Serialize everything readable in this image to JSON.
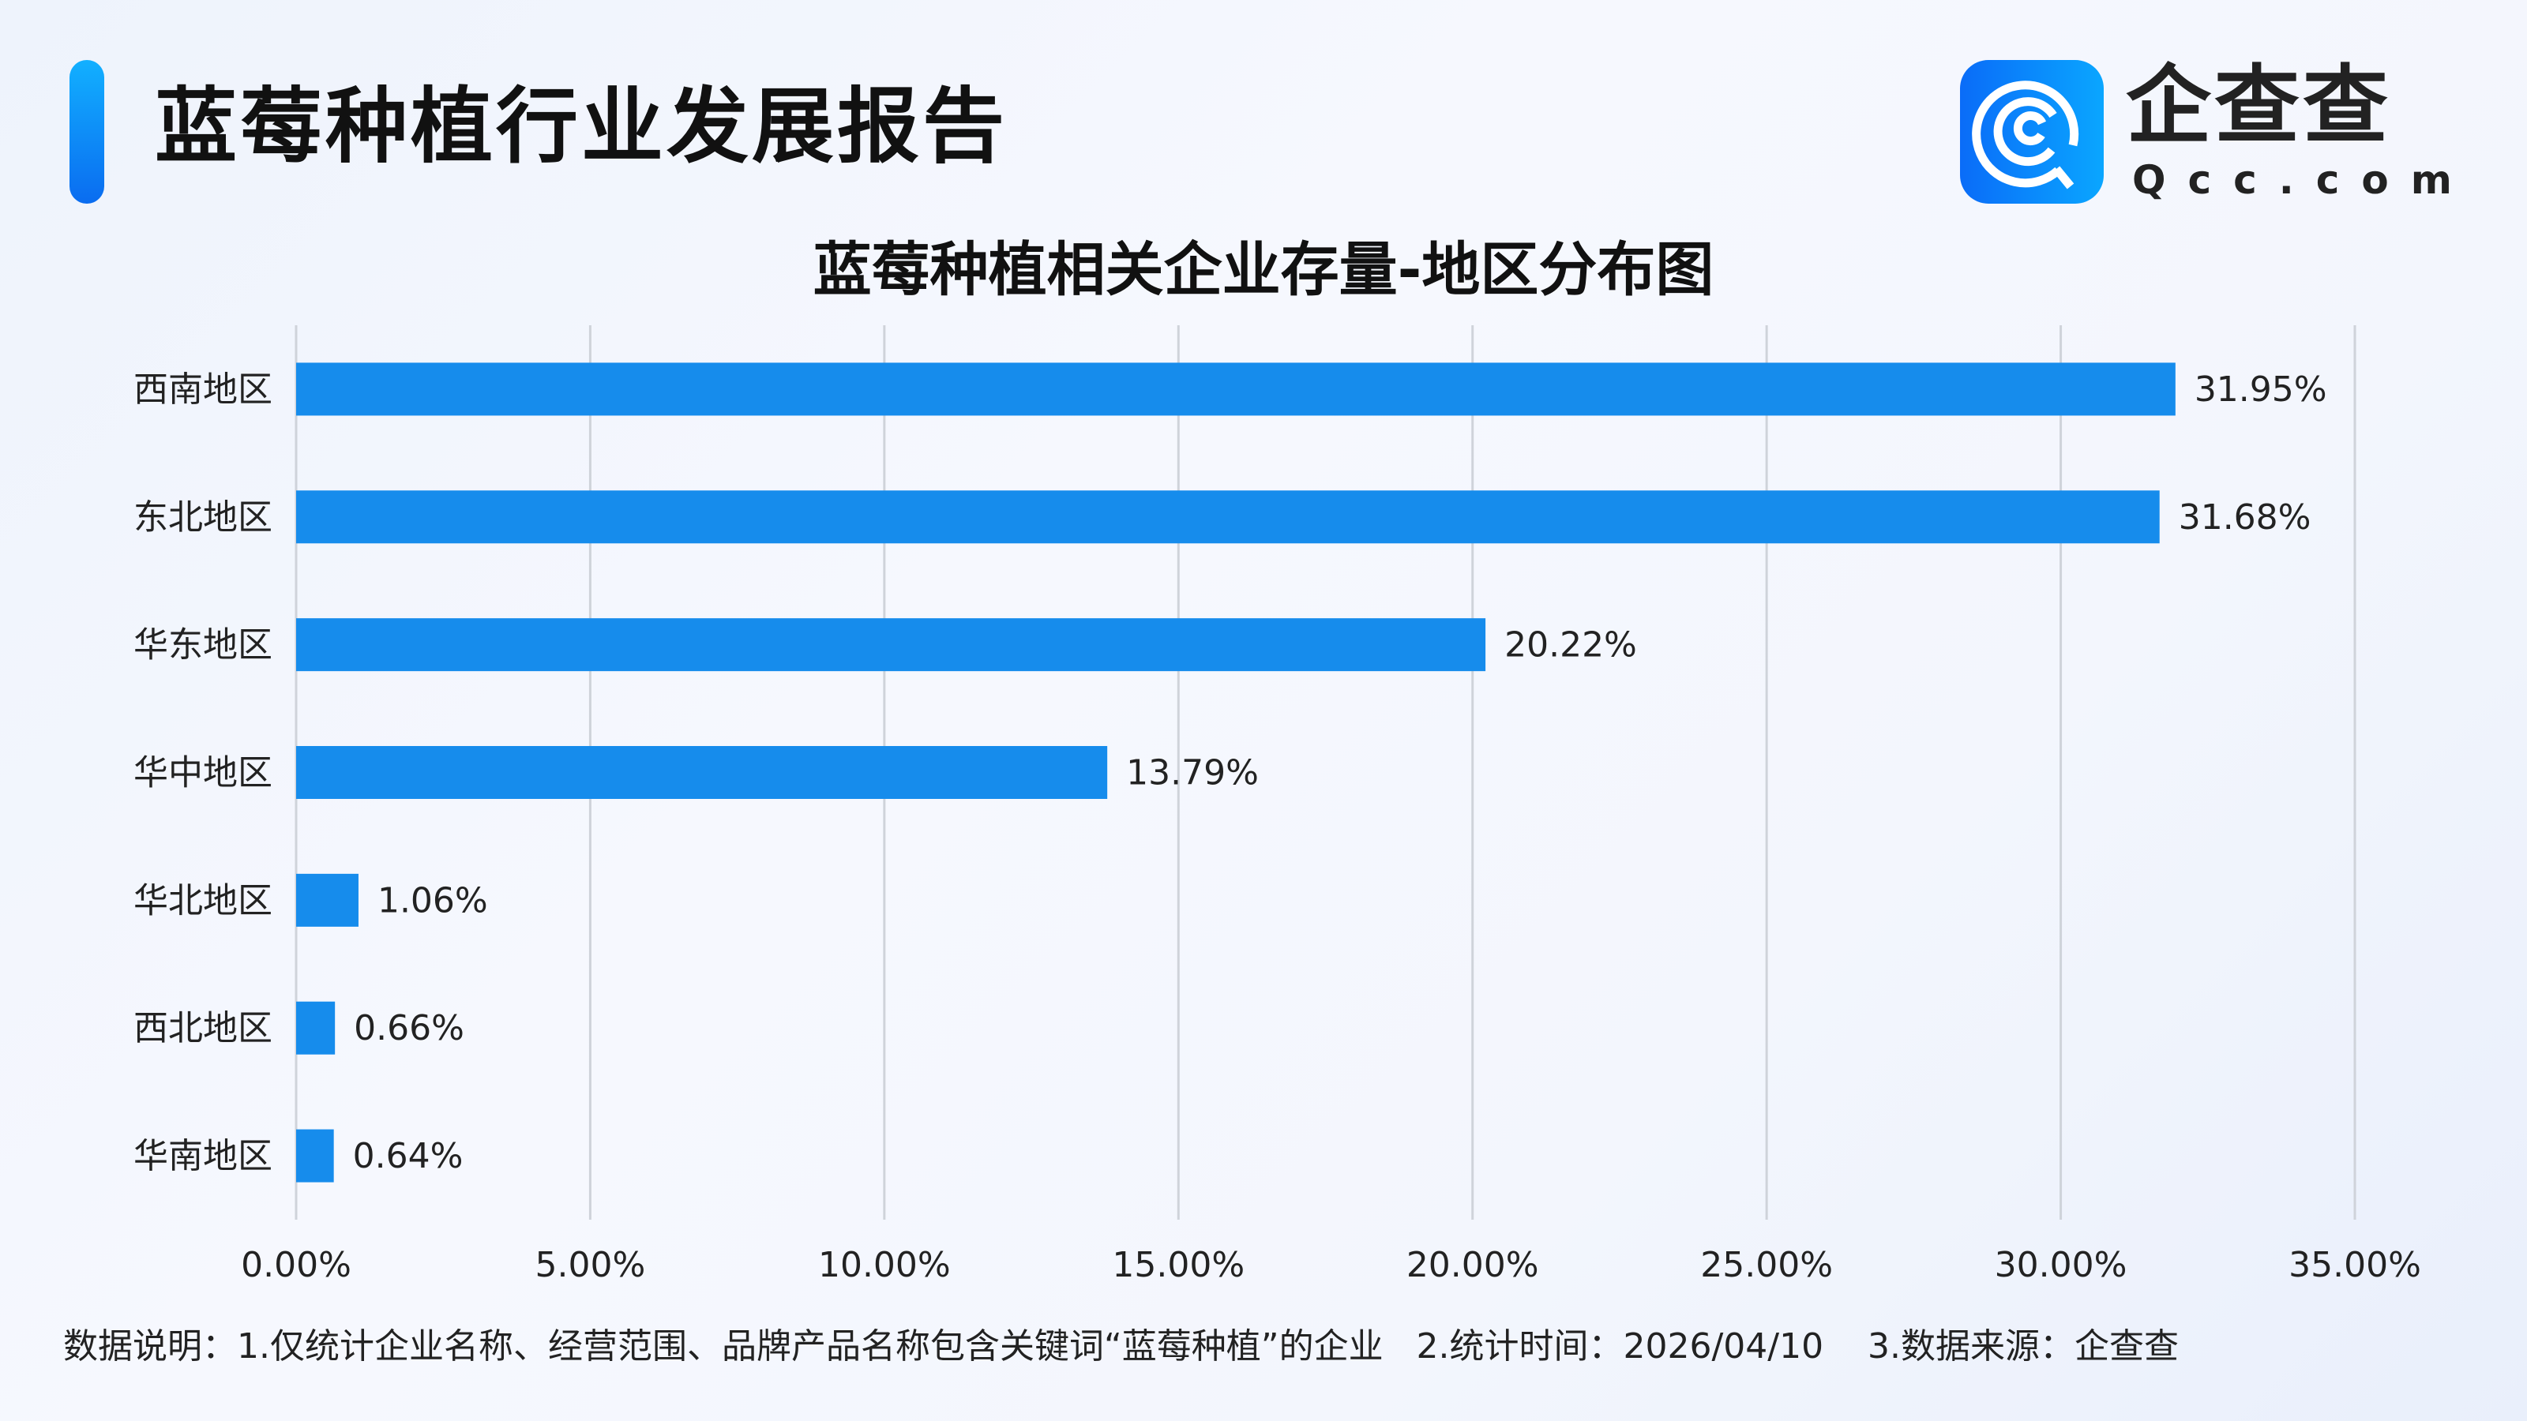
{
  "header": {
    "title": "蓝莓种植行业发展报告"
  },
  "logo": {
    "name_cn": "企查查",
    "name_en": "Qcc.com"
  },
  "colors": {
    "bar": "#168cec",
    "accent": "#0a8cff",
    "grid": "#cfd3da"
  },
  "chart_data": {
    "type": "bar",
    "orientation": "horizontal",
    "title": "蓝莓种植相关企业存量-地区分布图",
    "categories": [
      "西南地区",
      "东北地区",
      "华东地区",
      "华中地区",
      "华北地区",
      "西北地区",
      "华南地区"
    ],
    "values": [
      31.95,
      31.68,
      20.22,
      13.79,
      1.06,
      0.66,
      0.64
    ],
    "value_labels": [
      "31.95%",
      "31.68%",
      "20.22%",
      "13.79%",
      "1.06%",
      "0.66%",
      "0.64%"
    ],
    "xlim": [
      0,
      35
    ],
    "xticks": [
      0,
      5,
      10,
      15,
      20,
      25,
      30,
      35
    ],
    "xtick_labels": [
      "0.00%",
      "5.00%",
      "10.00%",
      "15.00%",
      "20.00%",
      "25.00%",
      "30.00%",
      "35.00%"
    ],
    "xlabel": "",
    "ylabel": "",
    "grid": "vertical"
  },
  "footer": {
    "note": "数据说明：1.仅统计企业名称、经营范围、品牌产品名称包含关键词“蓝莓种植”的企业   2.统计时间：2026/04/10    3.数据来源：企查查"
  }
}
